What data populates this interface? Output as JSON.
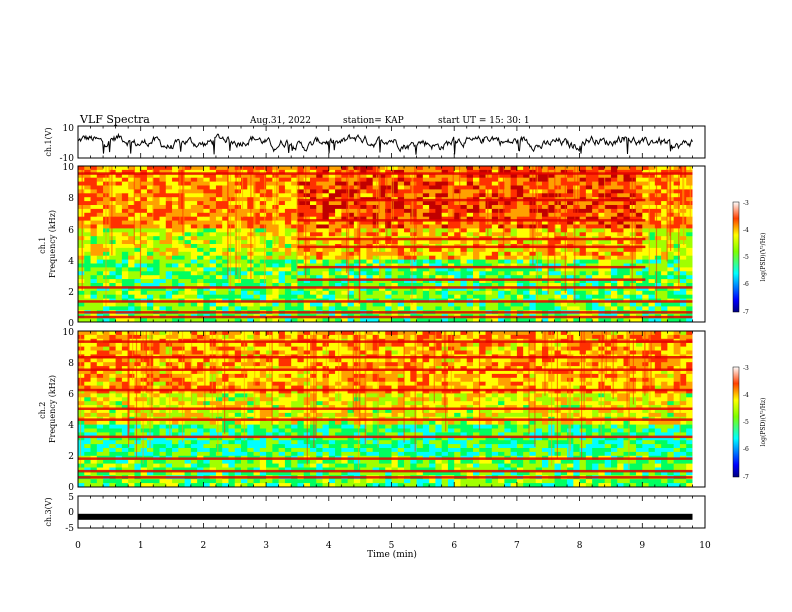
{
  "header": {
    "title": "VLF Spectra",
    "date": "Aug.31, 2022",
    "station": "station= KAP",
    "start_ut": "start  UT =   15: 30: 1"
  },
  "chart_data": [
    {
      "type": "line",
      "id": "ch1-waveform",
      "ylabel": "ch.1(V)",
      "ylim": [
        -10,
        10
      ],
      "yticks": [
        "10",
        "-10"
      ],
      "xlim": [
        0,
        10
      ],
      "x_end": 9.8
    },
    {
      "type": "heatmap",
      "id": "ch1-spectrogram",
      "ylabel": "ch.1\nFrequency (kHz)",
      "ylim": [
        0,
        10
      ],
      "yticks": [
        "0",
        "2",
        "4",
        "6",
        "8",
        "10"
      ],
      "xlim": [
        0,
        10
      ],
      "x_end": 9.8,
      "colorbar": {
        "range": [
          -7,
          -3
        ],
        "ticks": [
          "-3",
          "-4",
          "-5",
          "-6",
          "-7"
        ],
        "label": "log(PSD)(V²/Hz)"
      },
      "regime_change_min": [
        3.5,
        9.05
      ],
      "bands_khz": [
        0.3,
        0.6,
        1.3,
        2.2,
        2.7,
        3.5,
        4.8,
        5.3,
        6.5,
        7.8,
        9.5
      ]
    },
    {
      "type": "heatmap",
      "id": "ch2-spectrogram",
      "ylabel": "ch.2\nFrequency (kHz)",
      "ylim": [
        0,
        10
      ],
      "yticks": [
        "0",
        "2",
        "4",
        "6",
        "8",
        "10"
      ],
      "xlim": [
        0,
        10
      ],
      "x_end": 9.8,
      "colorbar": {
        "range": [
          -7,
          -3
        ],
        "ticks": [
          "-3",
          "-4",
          "-5",
          "-6",
          "-7"
        ],
        "label": "log(PSD)(V²/Hz)"
      },
      "bands_khz": [
        0.6,
        1.0,
        1.8,
        3.2,
        4.3,
        5.0,
        6.2,
        7.5,
        8.3,
        9.3
      ]
    },
    {
      "type": "line",
      "id": "ch3-signal",
      "ylabel": "ch.3(V)",
      "ylim": [
        -5,
        5
      ],
      "yticks": [
        "5",
        "0",
        "-5"
      ],
      "xlim": [
        0,
        10
      ],
      "x_end": 9.8,
      "level_v": -1.5,
      "xlabel": "Time  (min)",
      "xticks": [
        "0",
        "1",
        "2",
        "3",
        "4",
        "5",
        "6",
        "7",
        "8",
        "9",
        "10"
      ]
    }
  ],
  "colors": {
    "jet": [
      "#000080",
      "#0000ff",
      "#00a0ff",
      "#00ffff",
      "#00ff60",
      "#a0ff00",
      "#ffff00",
      "#ffa000",
      "#ff3000",
      "#c00000"
    ]
  }
}
